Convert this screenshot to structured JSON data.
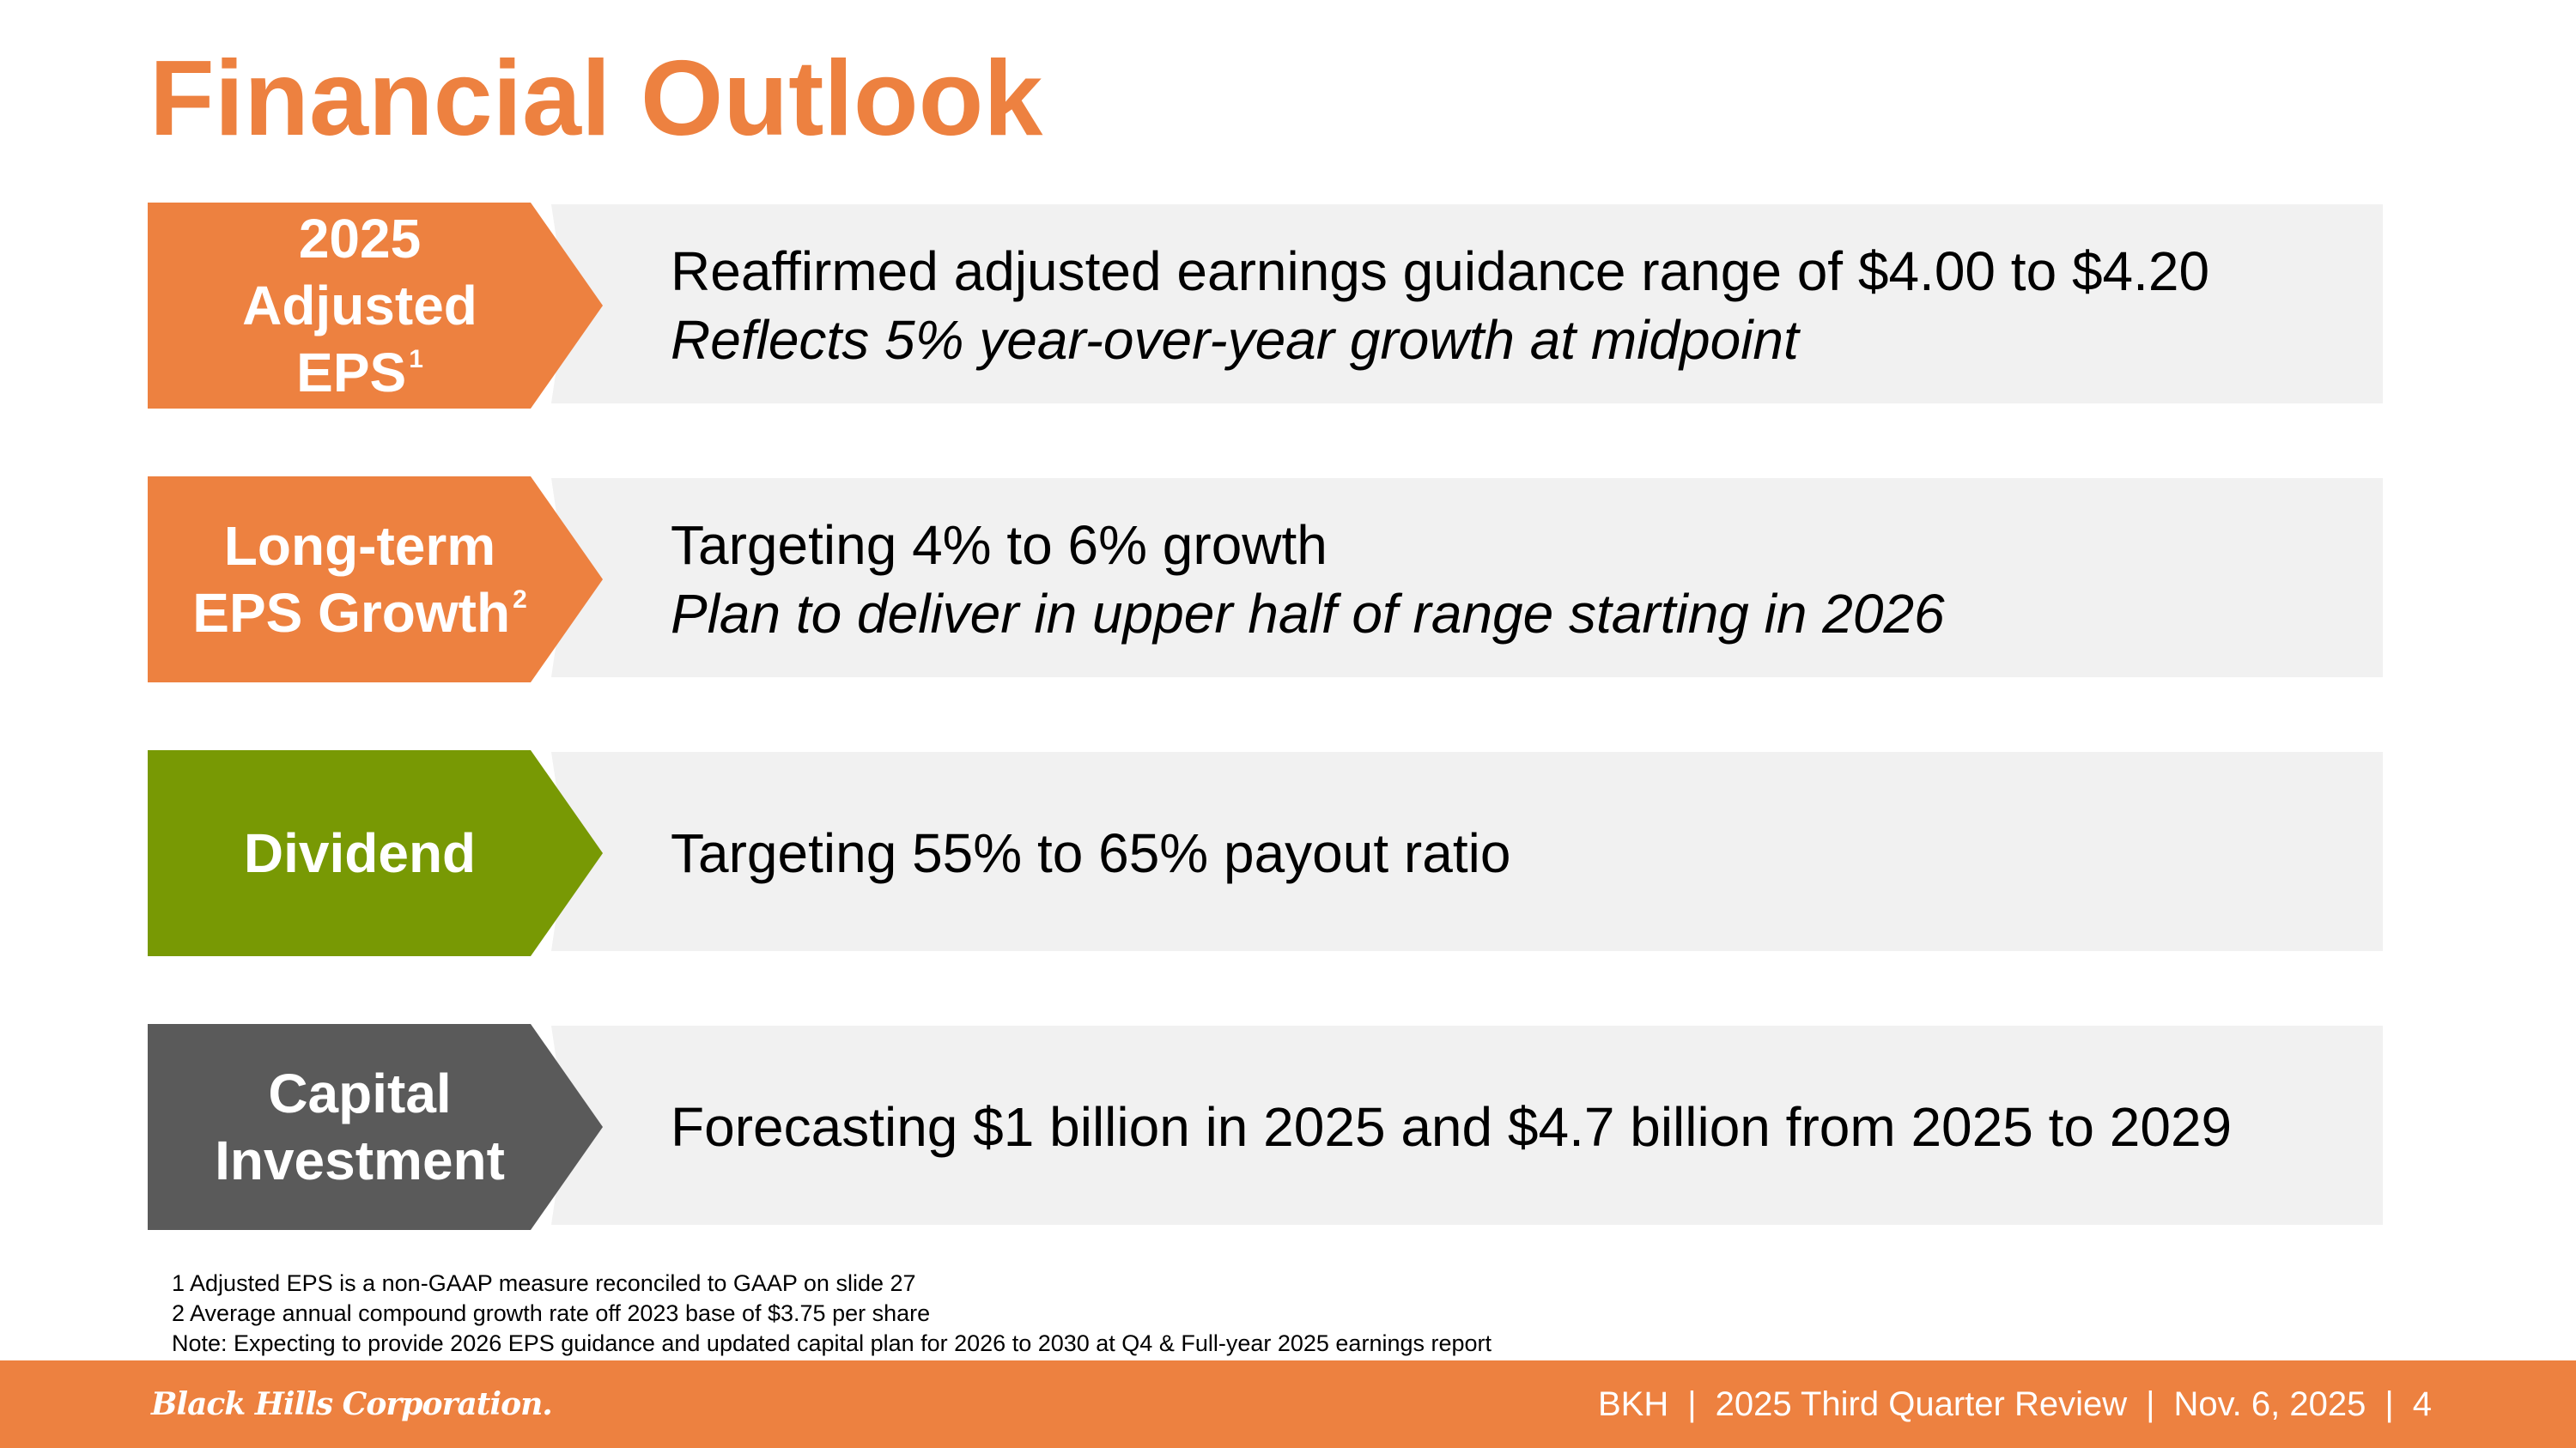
{
  "page": {
    "title": "Financial Outlook"
  },
  "rows": [
    {
      "label": [
        "2025",
        "Adjusted",
        "EPS"
      ],
      "label_sup": "1",
      "line1": "Reaffirmed adjusted earnings guidance range of $4.00 to $4.20",
      "line2": "Reflects 5% year-over-year growth at midpoint",
      "color": "#ED8140"
    },
    {
      "label": [
        "Long-term",
        "EPS Growth"
      ],
      "label_sup": "2",
      "line1": "Targeting 4% to 6% growth",
      "line2": "Plan to deliver in upper half of range starting in 2026",
      "color": "#ED8140"
    },
    {
      "label": [
        "Dividend"
      ],
      "line1": "Targeting 55% to 65% payout ratio",
      "color": "#789904"
    },
    {
      "label": [
        "Capital",
        "Investment"
      ],
      "line1": "Forecasting $1 billion in 2025 and $4.7 billion from 2025 to 2029",
      "color": "#5A5A5A"
    }
  ],
  "footnotes": [
    "1  Adjusted EPS is a non-GAAP measure reconciled to GAAP on slide 27",
    "2  Average annual compound growth rate off 2023 base of $3.75 per share",
    "Note: Expecting to provide 2026 EPS guidance and updated capital plan for 2026 to 2030 at Q4 & Full-year 2025 earnings report"
  ],
  "footer": {
    "logo_text": "Black Hills Corporation.",
    "ticker": "BKH",
    "report": "2025 Third Quarter Review",
    "date": "Nov. 6, 2025",
    "page_number": "4",
    "separator": "|",
    "bar_color": "#ED8140"
  }
}
